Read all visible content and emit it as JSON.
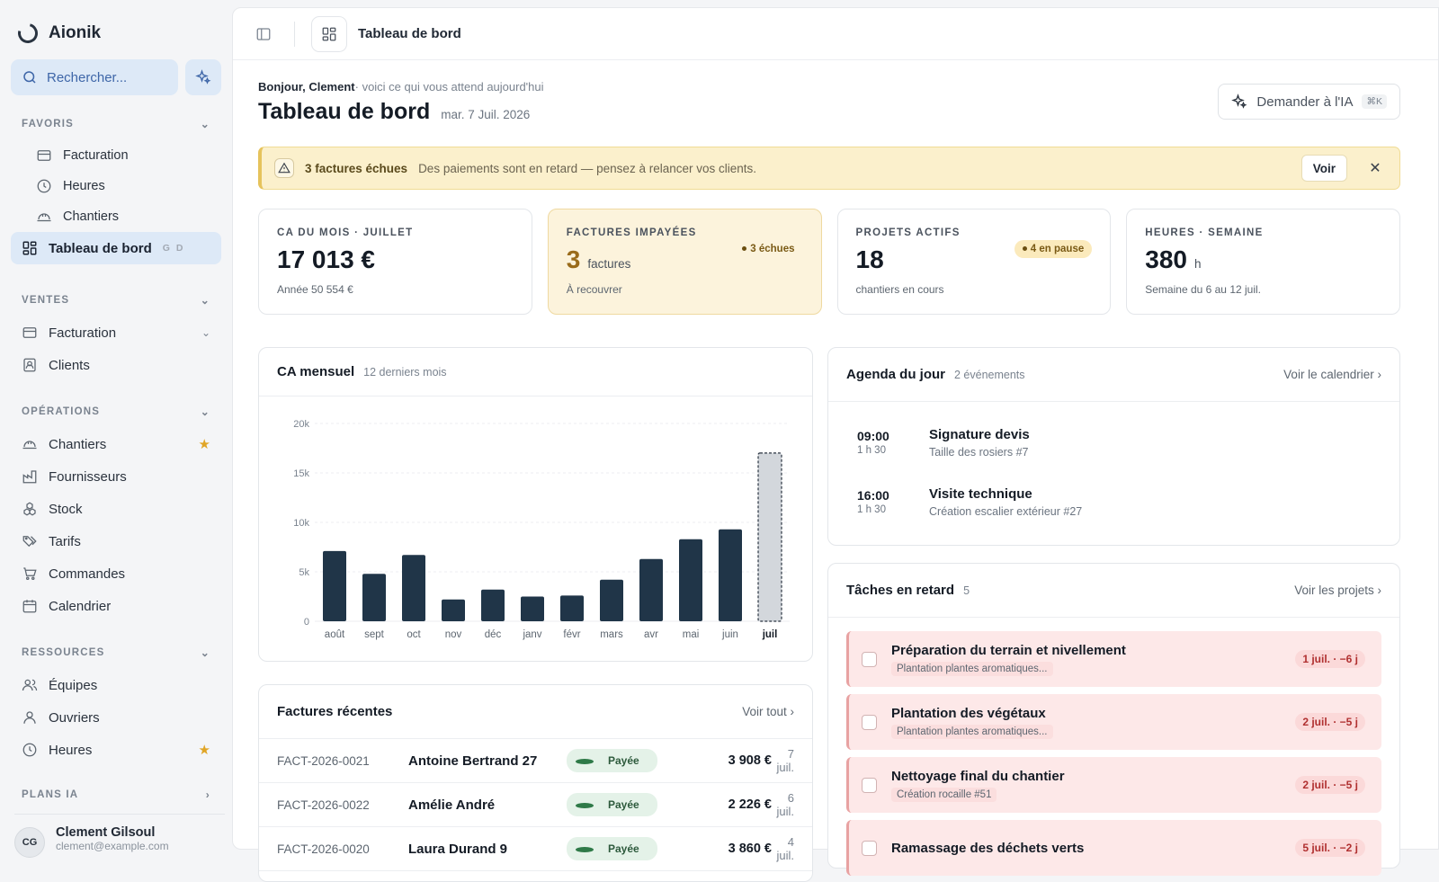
{
  "app": {
    "name": "Aionik"
  },
  "sidebar": {
    "search_placeholder": "Rechercher...",
    "sections": {
      "favoris": "FAVORIS",
      "ventes": "VENTES",
      "operations": "OPÉRATIONS",
      "ressources": "RESSOURCES",
      "plans_ia": "PLANS IA"
    },
    "favoris": [
      {
        "label": "Facturation",
        "icon": "card-icon"
      },
      {
        "label": "Heures",
        "icon": "clock-icon"
      },
      {
        "label": "Chantiers",
        "icon": "helmet-icon"
      }
    ],
    "active": {
      "label": "Tableau de bord",
      "hint": "G D"
    },
    "ventes": [
      {
        "label": "Facturation",
        "icon": "card-icon"
      },
      {
        "label": "Clients",
        "icon": "contact-icon"
      }
    ],
    "operations": [
      {
        "label": "Chantiers",
        "icon": "helmet-icon"
      },
      {
        "label": "Fournisseurs",
        "icon": "factory-icon"
      },
      {
        "label": "Stock",
        "icon": "boxes-icon"
      },
      {
        "label": "Tarifs",
        "icon": "tags-icon"
      },
      {
        "label": "Commandes",
        "icon": "cart-icon"
      },
      {
        "label": "Calendrier",
        "icon": "calendar-icon"
      }
    ],
    "ressources": [
      {
        "label": "Équipes",
        "icon": "users-icon"
      },
      {
        "label": "Ouvriers",
        "icon": "user-icon"
      },
      {
        "label": "Heures",
        "icon": "clock-icon"
      }
    ],
    "user": {
      "initials": "CG",
      "name": "Clement Gilsoul",
      "email": "clement@example.com"
    }
  },
  "topbar": {
    "title": "Tableau de bord"
  },
  "header": {
    "greeting_name": "Bonjour, Clement",
    "greeting_rest": "· voici ce qui vous attend aujourd'hui",
    "title": "Tableau de bord",
    "date": "mar. 7 Juil. 2026",
    "ask_ai": "Demander à l'IA",
    "ask_ai_kbd": "⌘K"
  },
  "alert": {
    "title": "3 factures échues",
    "text": "Des paiements sont en retard — pensez à relancer vos clients.",
    "button": "Voir"
  },
  "kpis": [
    {
      "label": "CA DU MOIS · JUILLET",
      "value": "17 013 €",
      "unit": "",
      "sub": "Année 50 554 €",
      "badge": ""
    },
    {
      "label": "FACTURES IMPAYÉES",
      "value": "3",
      "unit": "factures",
      "sub": "À recouvrer",
      "badge": "3 échues"
    },
    {
      "label": "PROJETS ACTIFS",
      "value": "18",
      "unit": "",
      "sub": "chantiers en cours",
      "badge": "4 en pause"
    },
    {
      "label": "HEURES · SEMAINE",
      "value": "380",
      "unit": "h",
      "sub": "Semaine du 6 au 12 juil.",
      "badge": ""
    }
  ],
  "chart_card": {
    "title": "CA mensuel",
    "subtitle": "12 derniers mois"
  },
  "chart_data": {
    "type": "bar",
    "categories": [
      "août",
      "sept",
      "oct",
      "nov",
      "déc",
      "janv",
      "févr",
      "mars",
      "avr",
      "mai",
      "juin",
      "juil"
    ],
    "values": [
      7100,
      4800,
      6700,
      2200,
      3200,
      2500,
      2600,
      4200,
      6300,
      8300,
      9300,
      17013
    ],
    "current_index": 11,
    "ylim": [
      0,
      20000
    ],
    "yticks": [
      "0",
      "5k",
      "10k",
      "15k",
      "20k"
    ],
    "bar_color": "#203548",
    "current_bar_color": "#d3d7dc",
    "grid": true
  },
  "agenda": {
    "title": "Agenda du jour",
    "count": "2 événements",
    "link": "Voir le calendrier",
    "events": [
      {
        "time": "09:00",
        "duration": "1 h 30",
        "name": "Signature devis",
        "desc": "Taille des rosiers #7"
      },
      {
        "time": "16:00",
        "duration": "1 h 30",
        "name": "Visite technique",
        "desc": "Création escalier extérieur #27"
      }
    ]
  },
  "tasks": {
    "title": "Tâches en retard",
    "count": "5",
    "link": "Voir les projets",
    "items": [
      {
        "name": "Préparation du terrain et nivellement",
        "tag": "Plantation plantes aromatiques...",
        "due": "1 juil. · −6 j"
      },
      {
        "name": "Plantation des végétaux",
        "tag": "Plantation plantes aromatiques...",
        "due": "2 juil. · −5 j"
      },
      {
        "name": "Nettoyage final du chantier",
        "tag": "Création rocaille #51",
        "due": "2 juil. · −5 j"
      },
      {
        "name": "Ramassage des déchets verts",
        "tag": "",
        "due": "5 juil. · −2 j"
      }
    ]
  },
  "invoices": {
    "title": "Factures récentes",
    "link": "Voir tout",
    "rows": [
      {
        "id": "FACT-2026-0021",
        "client": "Antoine Bertrand 27",
        "status": "Payée",
        "amount": "3 908 €",
        "date": "7 juil."
      },
      {
        "id": "FACT-2026-0022",
        "client": "Amélie André",
        "status": "Payée",
        "amount": "2 226 €",
        "date": "6 juil."
      },
      {
        "id": "FACT-2026-0020",
        "client": "Laura Durand 9",
        "status": "Payée",
        "amount": "3 860 €",
        "date": "4 juil."
      }
    ]
  }
}
